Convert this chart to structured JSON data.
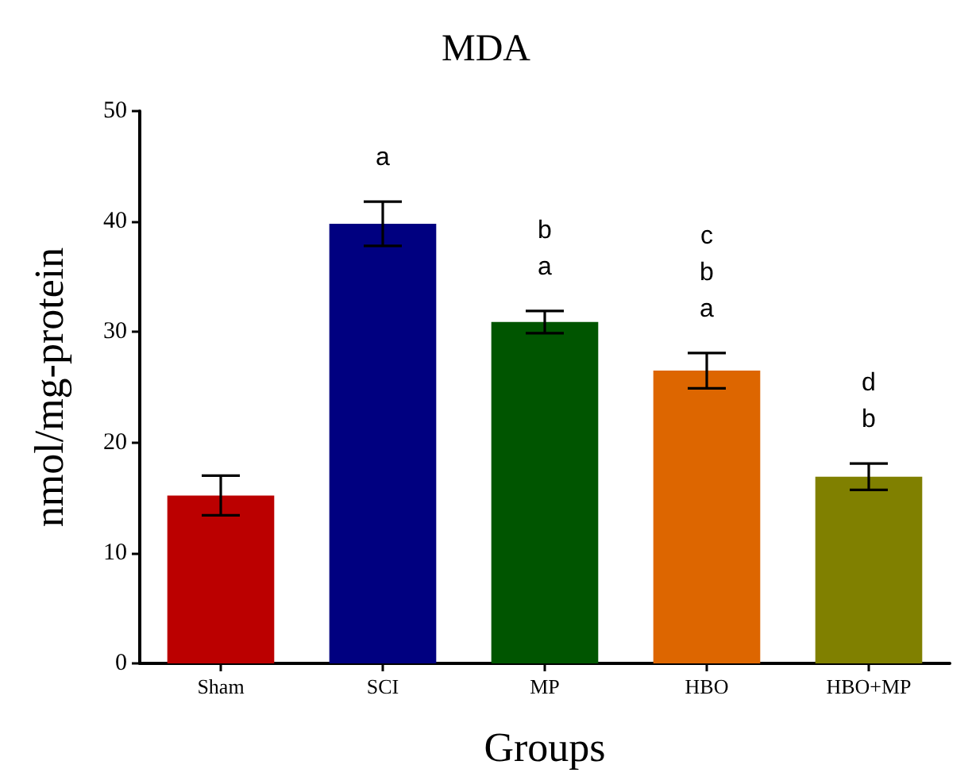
{
  "chart_data": {
    "type": "bar",
    "title": "MDA",
    "xlabel": "Groups",
    "ylabel": "nmol/mg-protein",
    "categories": [
      "Sham",
      "SCI",
      "MP",
      "HBO",
      "HBO+MP"
    ],
    "values": [
      15.2,
      39.8,
      30.9,
      26.5,
      16.9
    ],
    "colors": [
      "#bb0000",
      "#000080",
      "#005500",
      "#dd6600",
      "#808000"
    ],
    "errors": [
      1.8,
      2,
      1,
      1.6,
      1.2
    ],
    "ylim": [
      0,
      50
    ],
    "yticks": [
      0,
      10,
      20,
      30,
      40,
      50
    ],
    "grid": false,
    "value_labels": [
      null,
      "a",
      "b\na",
      "c\nb\na",
      "d\nb"
    ]
  }
}
